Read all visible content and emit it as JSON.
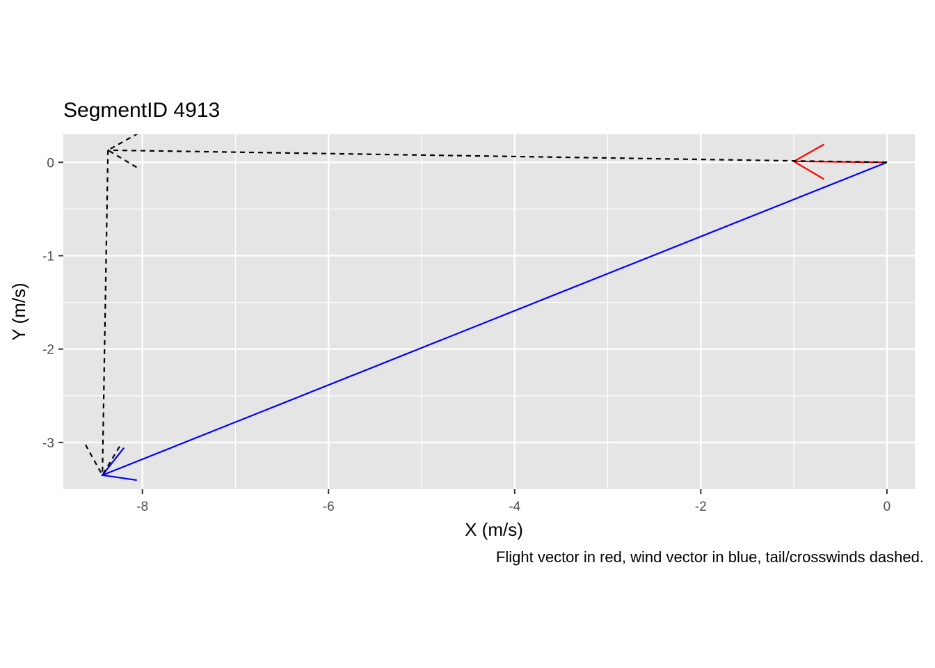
{
  "chart_data": {
    "type": "vector",
    "title": "SegmentID 4913",
    "xlabel": "X (m/s)",
    "ylabel": "Y (m/s)",
    "caption": "Flight vector in red, wind vector in blue, tail/crosswinds dashed.",
    "xlim": [
      -8.85,
      0.3
    ],
    "ylim": [
      -3.5,
      0.3
    ],
    "x_ticks": [
      -8,
      -6,
      -4,
      -2,
      0
    ],
    "y_ticks": [
      0,
      -1,
      -2,
      -3
    ],
    "x_tick_labels": [
      "-8",
      "-6",
      "-4",
      "-2",
      "0"
    ],
    "y_tick_labels": [
      "0",
      "-1",
      "-2",
      "-3"
    ],
    "grid": true,
    "panel_background": "#e5e5e5",
    "vectors": [
      {
        "role": "flight",
        "color": "#ff0000",
        "dashed": false,
        "from": [
          0,
          0
        ],
        "to": [
          -1.0,
          0.01
        ]
      },
      {
        "role": "wind",
        "color": "#0000ff",
        "dashed": false,
        "from": [
          0,
          0
        ],
        "to": [
          -8.43,
          -3.35
        ]
      },
      {
        "role": "tailwind",
        "color": "#000000",
        "dashed": true,
        "from": [
          0,
          0
        ],
        "to": [
          -8.37,
          0.13
        ]
      },
      {
        "role": "crosswind",
        "color": "#000000",
        "dashed": true,
        "from": [
          -8.37,
          0.13
        ],
        "to": [
          -8.43,
          -3.35
        ]
      }
    ]
  }
}
